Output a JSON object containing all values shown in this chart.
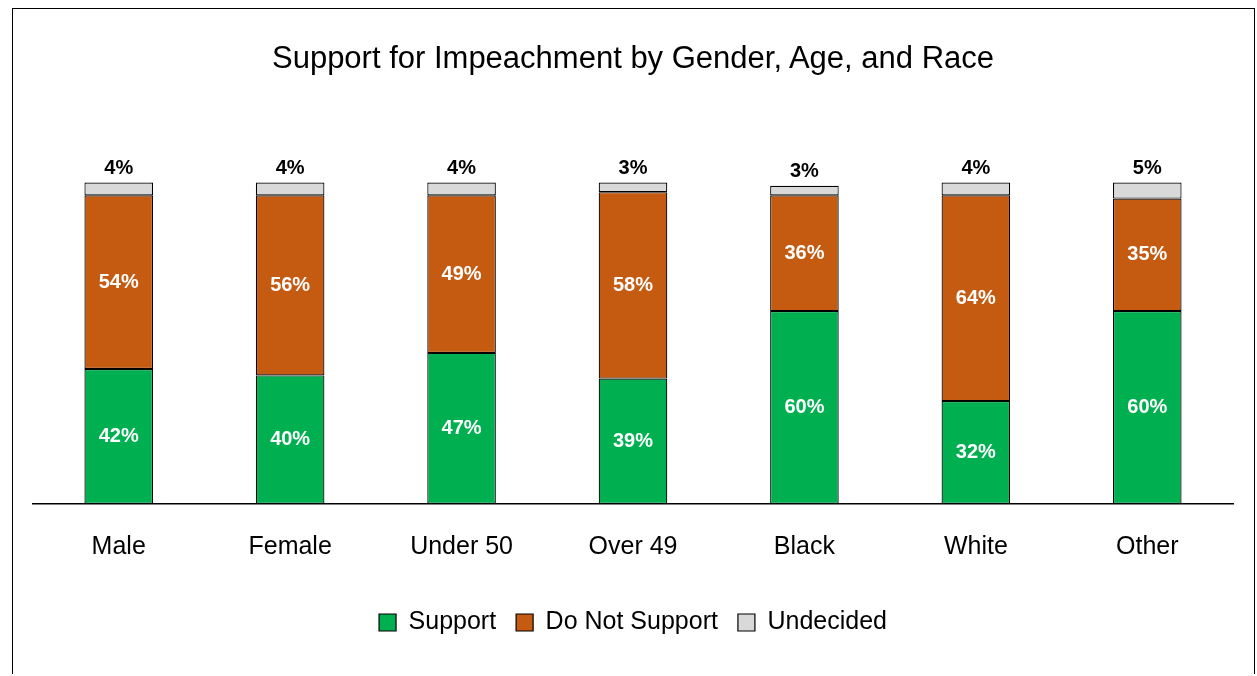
{
  "chart_data": {
    "type": "bar",
    "stacked": true,
    "title": "Support for Impeachment by Gender, Age, and Race",
    "categories": [
      "Male",
      "Female",
      "Under 50",
      "Over 49",
      "Black",
      "White",
      "Other"
    ],
    "legend": "bottom",
    "grid": false,
    "series": [
      {
        "name": "Support",
        "color": "#00b050",
        "values": [
          42,
          40,
          47,
          39,
          60,
          32,
          60
        ],
        "value_labels": [
          "42%",
          "40%",
          "47%",
          "39%",
          "60%",
          "32%",
          "60%"
        ]
      },
      {
        "name": "Do Not Support",
        "color": "#c55a11",
        "values": [
          54,
          56,
          49,
          58,
          36,
          64,
          35
        ],
        "value_labels": [
          "54%",
          "56%",
          "49%",
          "58%",
          "36%",
          "64%",
          "35%"
        ]
      },
      {
        "name": "Undecided",
        "color": "#d9d9d9",
        "values": [
          4,
          4,
          4,
          3,
          3,
          4,
          5
        ],
        "value_labels": [
          "4%",
          "4%",
          "4%",
          "3%",
          "3%",
          "4%",
          "5%"
        ]
      }
    ]
  }
}
